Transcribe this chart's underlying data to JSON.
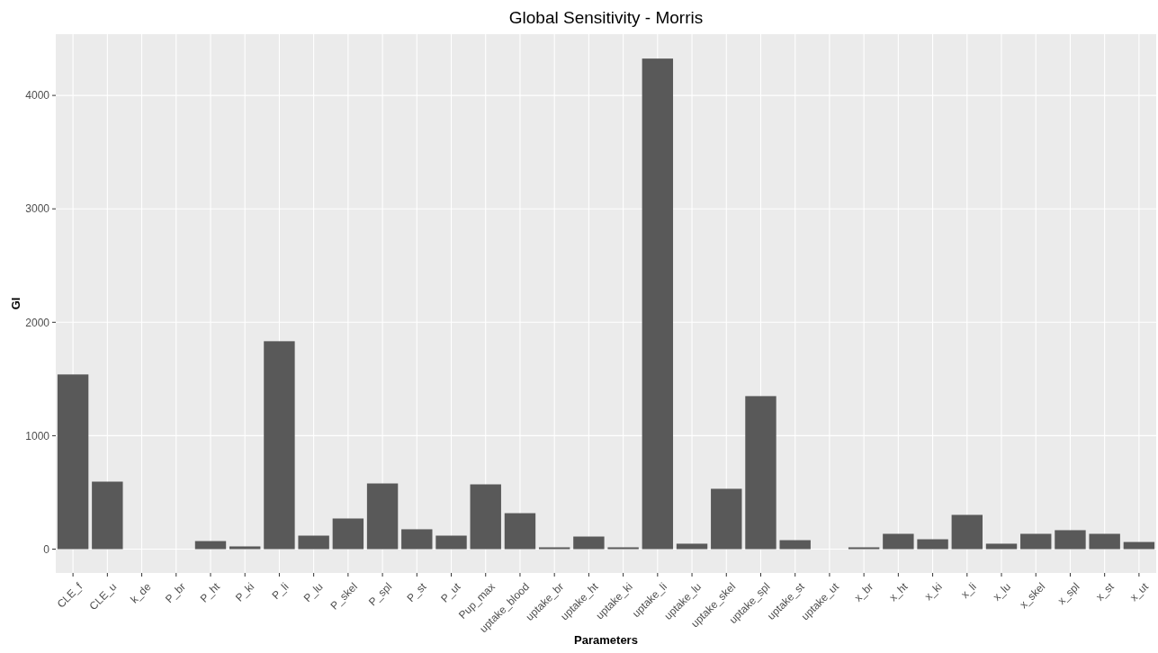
{
  "chart_data": {
    "type": "bar",
    "title": "Global Sensitivity - Morris",
    "xlabel": "Parameters",
    "ylabel": "GI",
    "categories": [
      "CLE_f",
      "CLE_u",
      "k_de",
      "P_br",
      "P_ht",
      "P_ki",
      "P_li",
      "P_lu",
      "P_skel",
      "P_spl",
      "P_st",
      "P_ut",
      "Pup_max",
      "uptake_blood",
      "uptake_br",
      "uptake_ht",
      "uptake_ki",
      "uptake_li",
      "uptake_lu",
      "uptake_skel",
      "uptake_spl",
      "uptake_st",
      "uptake_ut",
      "x_br",
      "x_ht",
      "x_ki",
      "x_li",
      "x_lu",
      "x_skel",
      "x_spl",
      "x_st",
      "x_ut"
    ],
    "values": [
      1540,
      595,
      0,
      0,
      71,
      24,
      1833,
      119,
      270,
      579,
      175,
      119,
      571,
      317,
      16,
      111,
      16,
      4325,
      48,
      532,
      1349,
      79,
      0,
      16,
      135,
      87,
      302,
      48,
      135,
      167,
      135,
      63
    ],
    "color": "#595959",
    "ylim": [
      -210,
      4540
    ],
    "yticks": [
      0,
      1000,
      2000,
      3000,
      4000
    ],
    "grid": true
  }
}
